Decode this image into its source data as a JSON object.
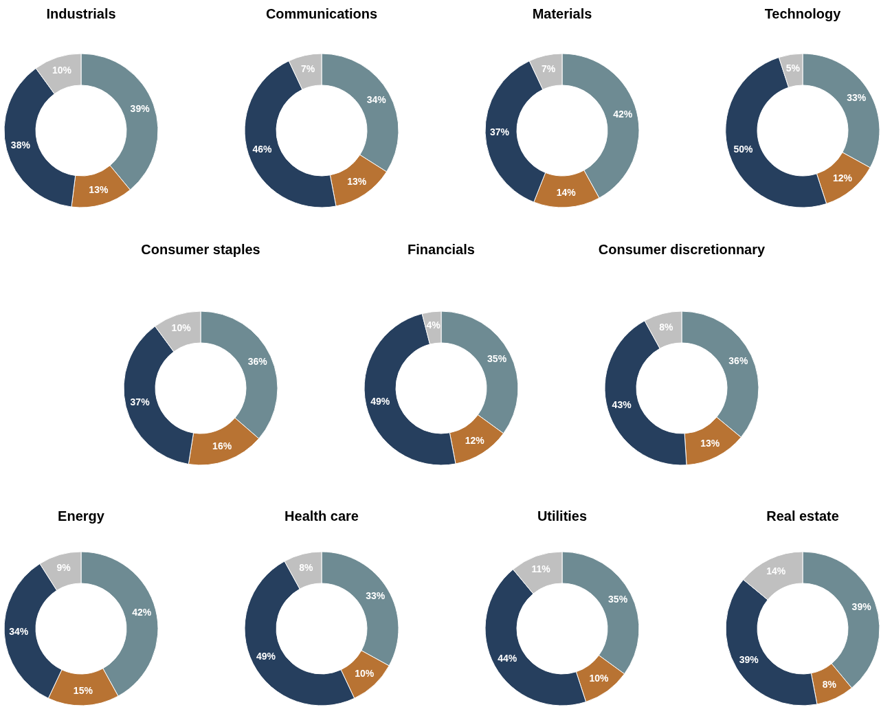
{
  "chart_data": [
    {
      "type": "donut",
      "title": "Industrials",
      "categories": [
        null,
        null,
        null,
        null
      ],
      "values": [
        39,
        13,
        38,
        10
      ],
      "colors": [
        "#6e8b93",
        "#b87333",
        "#263f5e",
        "#c0c0c0"
      ],
      "value_labels": [
        "39%",
        "13%",
        "38%",
        "10%"
      ]
    },
    {
      "type": "donut",
      "title": "Communications",
      "categories": [
        null,
        null,
        null,
        null
      ],
      "values": [
        34,
        13,
        46,
        7
      ],
      "colors": [
        "#6e8b93",
        "#b87333",
        "#263f5e",
        "#c0c0c0"
      ],
      "value_labels": [
        "34%",
        "13%",
        "46%",
        "7%"
      ]
    },
    {
      "type": "donut",
      "title": "Materials",
      "categories": [
        null,
        null,
        null,
        null
      ],
      "values": [
        42,
        14,
        37,
        7
      ],
      "colors": [
        "#6e8b93",
        "#b87333",
        "#263f5e",
        "#c0c0c0"
      ],
      "value_labels": [
        "42%",
        "14%",
        "37%",
        "7%"
      ]
    },
    {
      "type": "donut",
      "title": "Technology",
      "categories": [
        null,
        null,
        null,
        null
      ],
      "values": [
        33,
        12,
        50,
        5
      ],
      "colors": [
        "#6e8b93",
        "#b87333",
        "#263f5e",
        "#c0c0c0"
      ],
      "value_labels": [
        "33%",
        "12%",
        "50%",
        "5%"
      ]
    },
    {
      "type": "donut",
      "title": "Consumer staples",
      "categories": [
        null,
        null,
        null,
        null
      ],
      "values": [
        36,
        16,
        37,
        10
      ],
      "colors": [
        "#6e8b93",
        "#b87333",
        "#263f5e",
        "#c0c0c0"
      ],
      "value_labels": [
        "36%",
        "16%",
        "37%",
        "10%"
      ]
    },
    {
      "type": "donut",
      "title": "Financials",
      "categories": [
        null,
        null,
        null,
        null
      ],
      "values": [
        35,
        12,
        49,
        4
      ],
      "colors": [
        "#6e8b93",
        "#b87333",
        "#263f5e",
        "#c0c0c0"
      ],
      "value_labels": [
        "35%",
        "12%",
        "49%",
        "4%"
      ]
    },
    {
      "type": "donut",
      "title": "Consumer discretionnary",
      "categories": [
        null,
        null,
        null,
        null
      ],
      "values": [
        36,
        13,
        43,
        8
      ],
      "colors": [
        "#6e8b93",
        "#b87333",
        "#263f5e",
        "#c0c0c0"
      ],
      "value_labels": [
        "36%",
        "13%",
        "43%",
        "8%"
      ]
    },
    {
      "type": "donut",
      "title": "Energy",
      "categories": [
        null,
        null,
        null,
        null
      ],
      "values": [
        42,
        15,
        34,
        9
      ],
      "colors": [
        "#6e8b93",
        "#b87333",
        "#263f5e",
        "#c0c0c0"
      ],
      "value_labels": [
        "42%",
        "15%",
        "34%",
        "9%"
      ]
    },
    {
      "type": "donut",
      "title": "Health care",
      "categories": [
        null,
        null,
        null,
        null
      ],
      "values": [
        33,
        10,
        49,
        8
      ],
      "colors": [
        "#6e8b93",
        "#b87333",
        "#263f5e",
        "#c0c0c0"
      ],
      "value_labels": [
        "33%",
        "10%",
        "49%",
        "8%"
      ]
    },
    {
      "type": "donut",
      "title": "Utilities",
      "categories": [
        null,
        null,
        null,
        null
      ],
      "values": [
        35,
        10,
        44,
        11
      ],
      "colors": [
        "#6e8b93",
        "#b87333",
        "#263f5e",
        "#c0c0c0"
      ],
      "value_labels": [
        "35%",
        "10%",
        "44%",
        "11%"
      ]
    },
    {
      "type": "donut",
      "title": "Real estate",
      "categories": [
        null,
        null,
        null,
        null
      ],
      "values": [
        39,
        8,
        39,
        14
      ],
      "colors": [
        "#6e8b93",
        "#b87333",
        "#263f5e",
        "#c0c0c0"
      ],
      "value_labels": [
        "39%",
        "8%",
        "39%",
        "14%"
      ]
    }
  ]
}
